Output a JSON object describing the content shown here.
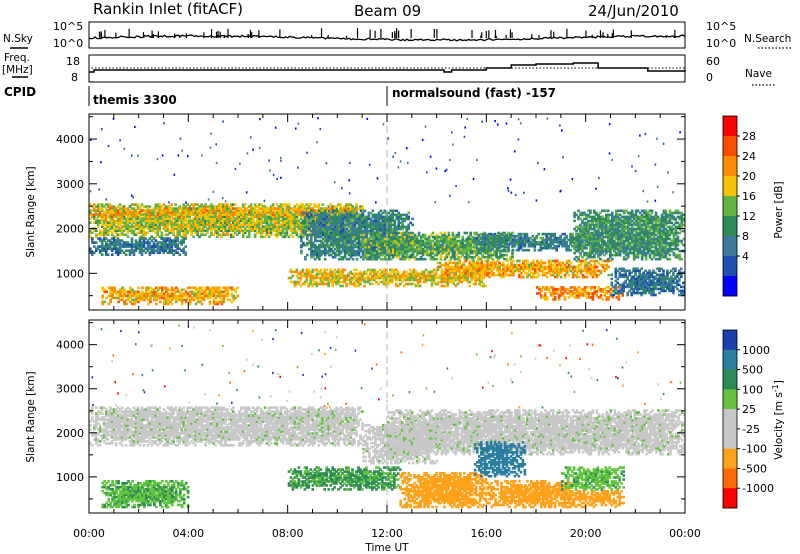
{
  "header": {
    "station": "Rankin Inlet (fitACF)",
    "beam": "Beam 09",
    "date": "24/Jun/2010"
  },
  "side_labels": {
    "nsky": "N.Sky",
    "nsearch": "N.Search",
    "freq_top": "Freq.",
    "freq_unit": "[MHz]",
    "nave": "Nave",
    "cpid": "CPID"
  },
  "top_axes": {
    "nsky_ticks": [
      "10^5",
      "10^0"
    ],
    "nsearch_ticks": [
      "10^5",
      "10^0"
    ],
    "freq_ticks": [
      "18",
      "8"
    ],
    "nave_ticks": [
      "60",
      "0"
    ]
  },
  "cpid_segments": [
    {
      "label": "themis 3300",
      "start_hour": 0
    },
    {
      "label": "normalsound (fast) -157",
      "start_hour": 12
    }
  ],
  "colorbars": {
    "power": {
      "label": "Power [dB]",
      "ticks": [
        "28",
        "24",
        "20",
        "16",
        "12",
        "8",
        "4"
      ],
      "colors": [
        "#ff0000",
        "#ff4d00",
        "#ff8c00",
        "#f5c200",
        "#62b343",
        "#2e8b57",
        "#3a7a9e",
        "#1c4fb0",
        "#0000ff"
      ]
    },
    "velocity": {
      "label": "Velocity [m s",
      "label_sup": "-1",
      "label_end": "]",
      "ticks": [
        "1000",
        "500",
        "100",
        "25",
        "-25",
        "-100",
        "-500",
        "-1000"
      ],
      "colors": [
        "#1c3fb0",
        "#2a7fa0",
        "#2e8b57",
        "#62c43d",
        "#c8c8c8",
        "#c8c8c8",
        "#ffa21a",
        "#ff6a00",
        "#ff0000"
      ]
    }
  },
  "chart_data": {
    "type": "heatmap",
    "xlabel": "Time UT",
    "ylabel": "Slant Range [km]",
    "x_ticks": [
      "00:00",
      "04:00",
      "08:00",
      "12:00",
      "16:00",
      "20:00",
      "00:00"
    ],
    "xlim": [
      0,
      24
    ],
    "y_ticks": [
      "1000",
      "2000",
      "3000",
      "4000"
    ],
    "ylim": [
      180,
      4560
    ],
    "x_unit": "hours UT",
    "power_bands": [
      {
        "t_start": 0.0,
        "t_end": 11.0,
        "r_low": 1800,
        "r_high": 2550,
        "level": 18
      },
      {
        "t_start": 0.0,
        "t_end": 11.0,
        "r_low": 2250,
        "r_high": 2450,
        "level": 22
      },
      {
        "t_start": 0.0,
        "t_end": 4.0,
        "r_low": 1400,
        "r_high": 1800,
        "level": 8
      },
      {
        "t_start": 8.5,
        "t_end": 13.0,
        "r_low": 1300,
        "r_high": 2400,
        "level": 10
      },
      {
        "t_start": 11.0,
        "t_end": 17.0,
        "r_low": 1300,
        "r_high": 1900,
        "level": 14
      },
      {
        "t_start": 8.0,
        "t_end": 16.0,
        "r_low": 700,
        "r_high": 1100,
        "level": 20
      },
      {
        "t_start": 14.0,
        "t_end": 21.0,
        "r_low": 900,
        "r_high": 1300,
        "level": 22
      },
      {
        "t_start": 15.5,
        "t_end": 20.5,
        "r_low": 1500,
        "r_high": 1900,
        "level": 10
      },
      {
        "t_start": 18.0,
        "t_end": 21.5,
        "r_low": 400,
        "r_high": 700,
        "level": 24
      },
      {
        "t_start": 0.5,
        "t_end": 6.0,
        "r_low": 300,
        "r_high": 700,
        "level": 22
      },
      {
        "t_start": 19.5,
        "t_end": 24.0,
        "r_low": 1300,
        "r_high": 2400,
        "level": 12
      },
      {
        "t_start": 21.0,
        "t_end": 24.0,
        "r_low": 500,
        "r_high": 1100,
        "level": 8
      }
    ],
    "velocity_bands": [
      {
        "t_start": 0.0,
        "t_end": 11.0,
        "r_low": 1700,
        "r_high": 2600,
        "vel": 0
      },
      {
        "t_start": 11.0,
        "t_end": 14.0,
        "r_low": 1300,
        "r_high": 2200,
        "vel": 0
      },
      {
        "t_start": 12.0,
        "t_end": 24.0,
        "r_low": 1500,
        "r_high": 2500,
        "vel": 0
      },
      {
        "t_start": 0.5,
        "t_end": 4.0,
        "r_low": 300,
        "r_high": 900,
        "vel": 90
      },
      {
        "t_start": 8.0,
        "t_end": 12.5,
        "r_low": 700,
        "r_high": 1200,
        "vel": 110
      },
      {
        "t_start": 12.5,
        "t_end": 16.0,
        "r_low": 300,
        "r_high": 1100,
        "vel": -300
      },
      {
        "t_start": 15.5,
        "t_end": 17.5,
        "r_low": 1000,
        "r_high": 1800,
        "vel": 600
      },
      {
        "t_start": 16.0,
        "t_end": 19.5,
        "r_low": 300,
        "r_high": 900,
        "vel": -250
      },
      {
        "t_start": 19.0,
        "t_end": 21.5,
        "r_low": 300,
        "r_high": 700,
        "vel": -150
      },
      {
        "t_start": 19.0,
        "t_end": 21.5,
        "r_low": 700,
        "r_high": 1200,
        "vel": 80
      }
    ]
  }
}
